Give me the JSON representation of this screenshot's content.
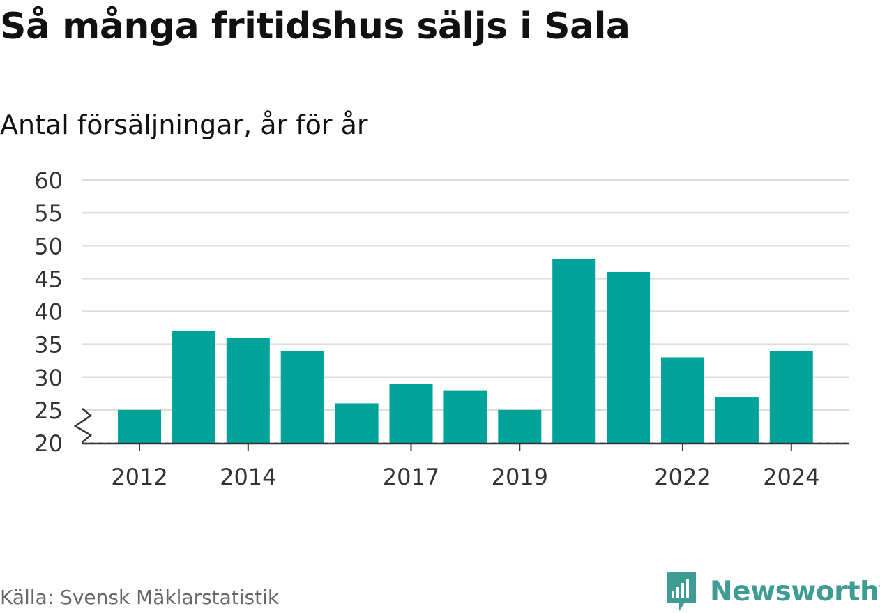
{
  "title": "Så många fritidshus säljs i Sala",
  "subtitle": "Antal försäljningar, år för år",
  "source": "Källa: Svensk Mäklarstatistik",
  "brand": "Newsworthy",
  "colors": {
    "bar": "#00a39a",
    "grid": "#dddddd",
    "axis": "#333333",
    "brand": "#3f9c94"
  },
  "chart_data": {
    "type": "bar",
    "categories": [
      "2012",
      "2013",
      "2014",
      "2015",
      "2016",
      "2017",
      "2018",
      "2019",
      "2020",
      "2021",
      "2022",
      "2023",
      "2024"
    ],
    "values": [
      25,
      37,
      36,
      34,
      26,
      29,
      28,
      25,
      48,
      46,
      33,
      27,
      34
    ],
    "x_tick_labels": [
      "2012",
      "",
      "2014",
      "",
      "",
      "2017",
      "",
      "2019",
      "",
      "",
      "2022",
      "",
      "2024"
    ],
    "y_ticks": [
      20,
      25,
      30,
      35,
      40,
      45,
      50,
      55,
      60
    ],
    "ylim": [
      20,
      60
    ],
    "y_axis_break": true,
    "grid": true,
    "xlabel": "",
    "ylabel": ""
  }
}
